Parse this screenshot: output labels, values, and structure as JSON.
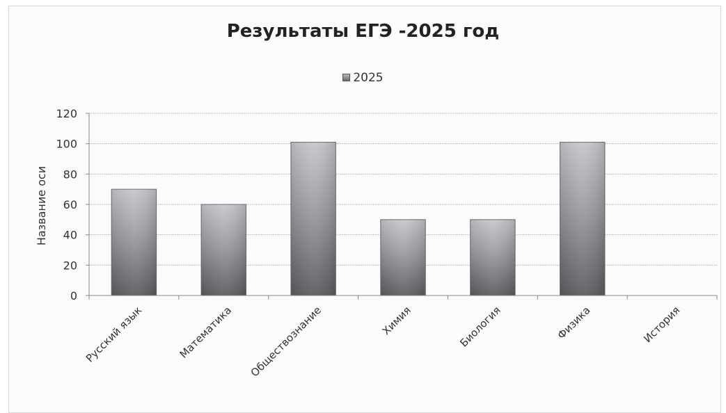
{
  "chart_data": {
    "type": "bar",
    "title": "Результаты ЕГЭ -2025 год",
    "xlabel": "",
    "ylabel": "Название оси",
    "categories": [
      "Русский язык",
      "Математика",
      "Обществознание",
      "Химия",
      "Биология",
      "Физика",
      "История"
    ],
    "series": [
      {
        "name": "2025",
        "values": [
          70,
          60,
          101,
          50,
          50,
          101,
          0
        ]
      }
    ],
    "ylim": [
      0,
      120
    ],
    "yticks": [
      0,
      20,
      40,
      60,
      80,
      100,
      120
    ],
    "grid": true,
    "legend_position": "top"
  },
  "colors": {
    "bar_light": "#c4c4c9",
    "bar_mid": "#8d8d92",
    "bar_dark": "#5d5d62",
    "grid": "#bdbdbd",
    "axis": "#8a8a8a"
  }
}
